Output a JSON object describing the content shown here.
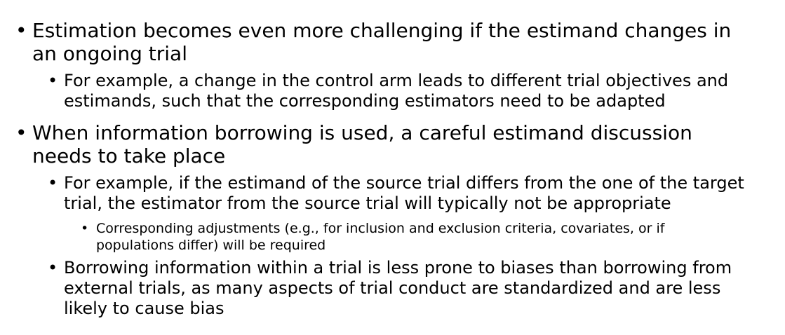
{
  "bullet_char": "•",
  "items": [
    {
      "level": 1,
      "lines": [
        "Estimation becomes even more challenging if the estimand changes in",
        "an ongoing trial"
      ]
    },
    {
      "level": 2,
      "lines": [
        "For example, a change in the control arm leads to different trial objectives and",
        "estimands, such that the corresponding estimators need to be adapted"
      ]
    },
    {
      "level": 1,
      "lines": [
        "When information borrowing is used, a careful estimand discussion",
        "needs to take place"
      ]
    },
    {
      "level": 2,
      "lines": [
        "For example, if the estimand of the source trial differs from the one of the target",
        "trial, the estimator from the source trial will typically not be appropriate"
      ]
    },
    {
      "level": 3,
      "lines": [
        "Corresponding adjustments (e.g., for inclusion and exclusion criteria, covariates, or if",
        "populations differ) will be required"
      ]
    },
    {
      "level": 2,
      "lines": [
        "Borrowing information within a trial is less prone to biases than borrowing from",
        "external trials, as many aspects of trial conduct are standardized and are less",
        "likely to cause bias"
      ]
    }
  ]
}
